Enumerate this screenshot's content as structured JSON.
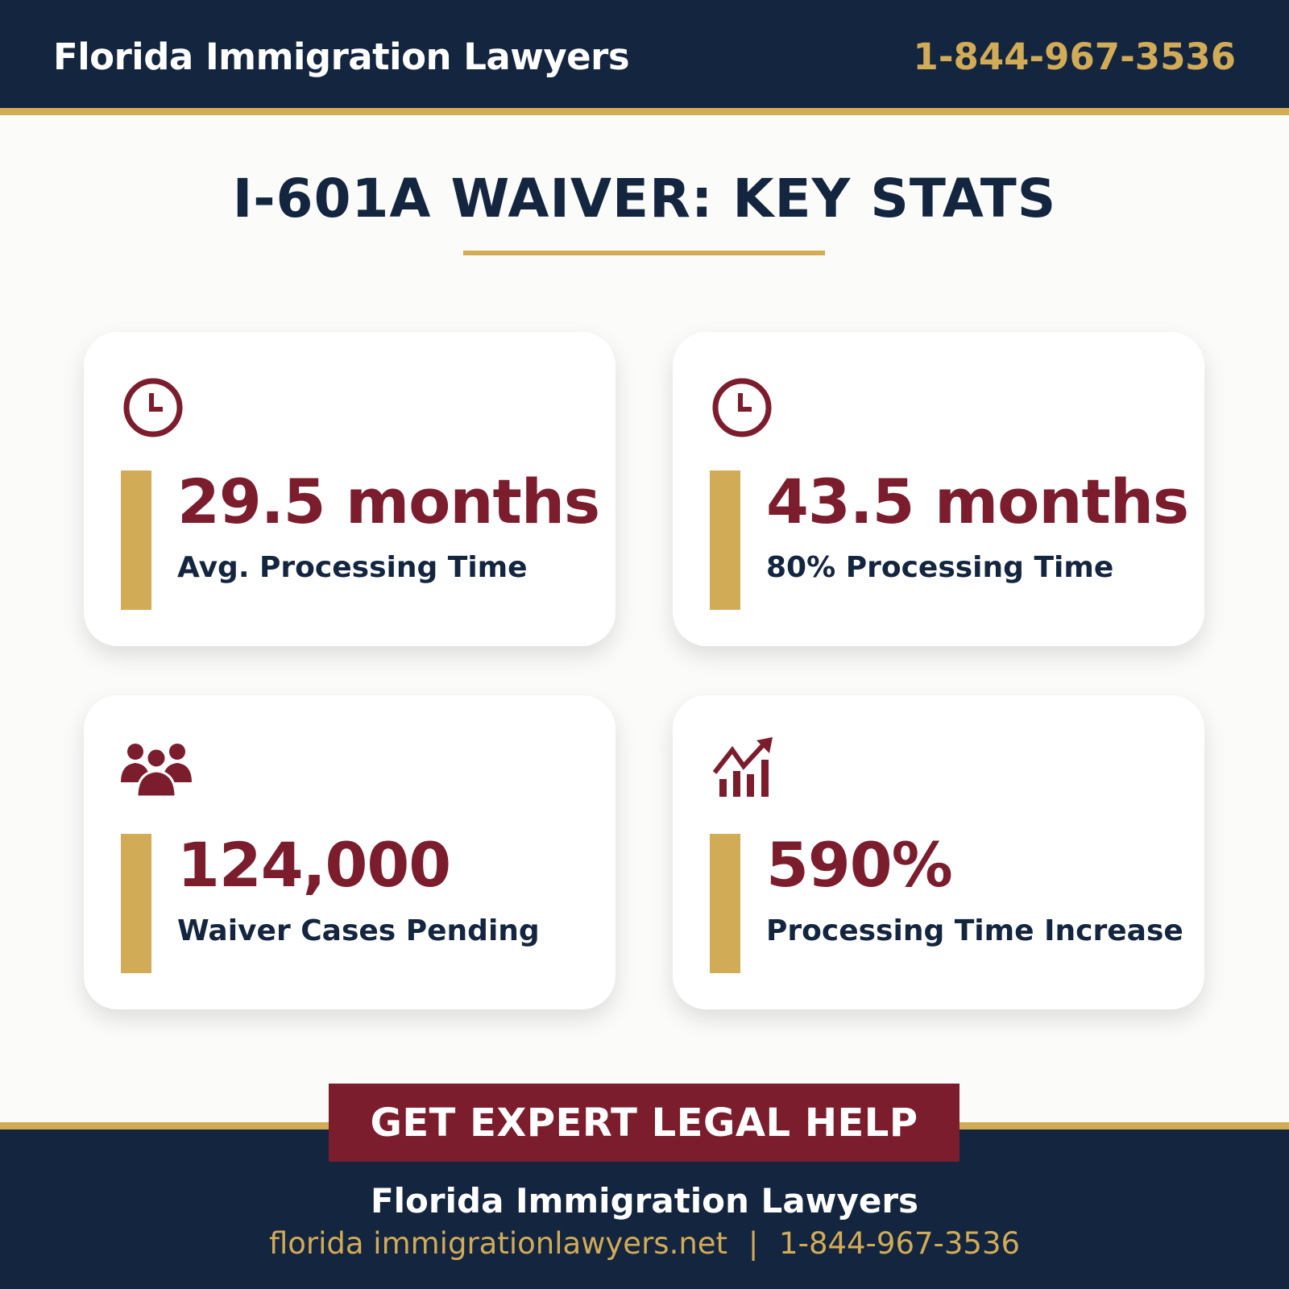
{
  "header": {
    "brand": "Florida Immigration Lawyers",
    "phone": "1-844-967-3536"
  },
  "title": "I-601A WAIVER: KEY STATS",
  "colors": {
    "navy": "#13253f",
    "gold": "#d2ab57",
    "maroon": "#7c1d2d"
  },
  "stats": [
    {
      "icon": "clock-icon",
      "value": "29.5 months",
      "label": "Avg. Processing Time"
    },
    {
      "icon": "clock-icon",
      "value": "43.5 months",
      "label": "80% Processing Time"
    },
    {
      "icon": "users-icon",
      "value": "124,000",
      "label": "Waiver Cases Pending"
    },
    {
      "icon": "growth-chart-icon",
      "value": "590%",
      "label": "Processing Time Increase"
    }
  ],
  "cta": {
    "label": "GET EXPERT LEGAL HELP"
  },
  "footer": {
    "title": "Florida Immigration Lawyers",
    "website": "florida immigrationlawyers.net",
    "separator": "|",
    "phone": "1-844-967-3536"
  }
}
